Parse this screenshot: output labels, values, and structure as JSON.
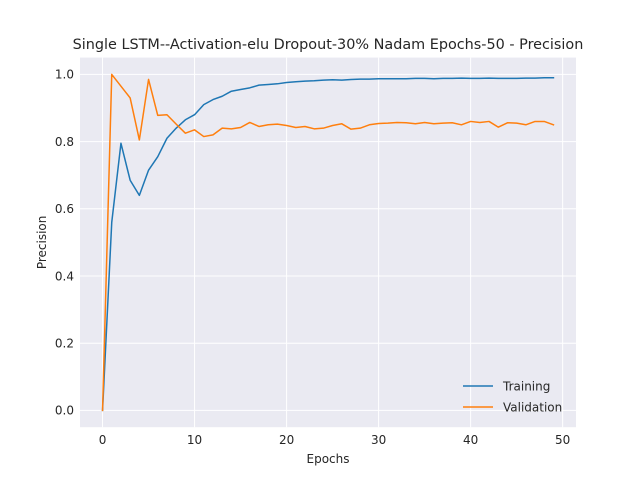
{
  "chart_data": {
    "type": "line",
    "title": "Single LSTM--Activation-elu Dropout-30% Nadam Epochs-50 - Precision",
    "xlabel": "Epochs",
    "ylabel": "Precision",
    "xlim": [
      -2.45,
      51.45
    ],
    "ylim": [
      -0.05,
      1.05
    ],
    "xticks": [
      0,
      10,
      20,
      30,
      40,
      50
    ],
    "yticks": [
      0.0,
      0.2,
      0.4,
      0.6,
      0.8,
      1.0
    ],
    "xtick_labels": [
      "0",
      "10",
      "20",
      "30",
      "40",
      "50"
    ],
    "ytick_labels": [
      "0.0",
      "0.2",
      "0.4",
      "0.6",
      "0.8",
      "1.0"
    ],
    "grid": true,
    "legend_position": "lower-right",
    "colors": {
      "background": "#eaeaf2",
      "grid": "#ffffff",
      "training": "#1f77b4",
      "validation": "#ff7f0e"
    },
    "x": [
      0,
      1,
      2,
      3,
      4,
      5,
      6,
      7,
      8,
      9,
      10,
      11,
      12,
      13,
      14,
      15,
      16,
      17,
      18,
      19,
      20,
      21,
      22,
      23,
      24,
      25,
      26,
      27,
      28,
      29,
      30,
      31,
      32,
      33,
      34,
      35,
      36,
      37,
      38,
      39,
      40,
      41,
      42,
      43,
      44,
      45,
      46,
      47,
      48,
      49
    ],
    "series": [
      {
        "name": "Training",
        "color": "#1f77b4",
        "values": [
          0.0,
          0.56,
          0.795,
          0.685,
          0.64,
          0.715,
          0.755,
          0.81,
          0.84,
          0.865,
          0.88,
          0.91,
          0.925,
          0.935,
          0.95,
          0.955,
          0.96,
          0.968,
          0.97,
          0.972,
          0.976,
          0.978,
          0.98,
          0.981,
          0.983,
          0.984,
          0.983,
          0.985,
          0.986,
          0.986,
          0.987,
          0.987,
          0.987,
          0.987,
          0.988,
          0.988,
          0.987,
          0.988,
          0.988,
          0.989,
          0.988,
          0.988,
          0.989,
          0.988,
          0.988,
          0.988,
          0.989,
          0.989,
          0.99,
          0.99
        ]
      },
      {
        "name": "Validation",
        "color": "#ff7f0e",
        "values": [
          0.0,
          1.0,
          0.965,
          0.93,
          0.805,
          0.985,
          0.878,
          0.88,
          0.852,
          0.825,
          0.835,
          0.815,
          0.82,
          0.84,
          0.838,
          0.842,
          0.857,
          0.845,
          0.85,
          0.852,
          0.848,
          0.842,
          0.845,
          0.838,
          0.84,
          0.848,
          0.853,
          0.837,
          0.84,
          0.85,
          0.854,
          0.855,
          0.857,
          0.856,
          0.853,
          0.857,
          0.853,
          0.855,
          0.856,
          0.85,
          0.86,
          0.857,
          0.86,
          0.843,
          0.856,
          0.855,
          0.85,
          0.86,
          0.86,
          0.85
        ]
      }
    ]
  }
}
